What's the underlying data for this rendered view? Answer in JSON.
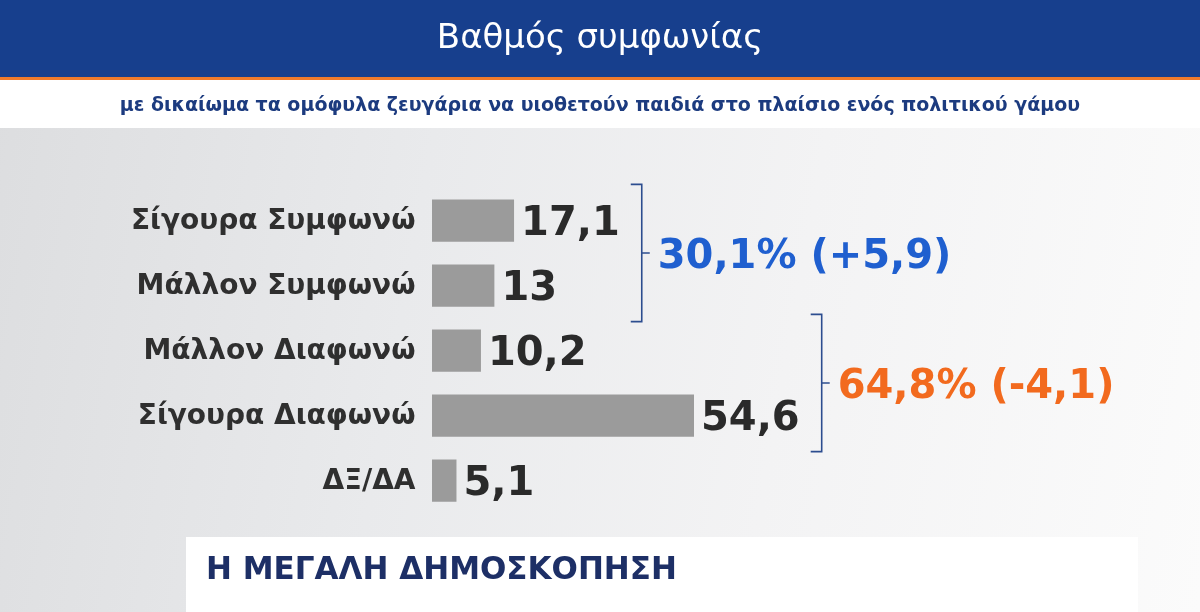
{
  "chart_data": {
    "type": "bar",
    "orientation": "horizontal",
    "title": "Βαθμός συμφωνίας",
    "subtitle": "με δικαίωμα τα ομόφυλα ζευγάρια να υιοθετούν παιδιά στο πλαίσιο ενός πολιτικού γάμου",
    "categories": [
      "Σίγουρα Συμφωνώ",
      "Μάλλον Συμφωνώ",
      "Μάλλον Διαφωνώ",
      "Σίγουρα Διαφωνώ",
      "ΔΞ/ΔΑ"
    ],
    "values": [
      17.1,
      13,
      10.2,
      54.6,
      5.1
    ],
    "value_labels": [
      "17,1",
      "13",
      "10,2",
      "54,6",
      "5,1"
    ],
    "color": "#9b9b9b",
    "annotations": [
      "30,1% (+5,9)",
      "64,8% (-4,1)",
      "Η ΜΕΓΑΛΗ ΔΗΜΟΣΚΟΠΗΣΗ"
    ],
    "tick_labels": "y"
  }
}
